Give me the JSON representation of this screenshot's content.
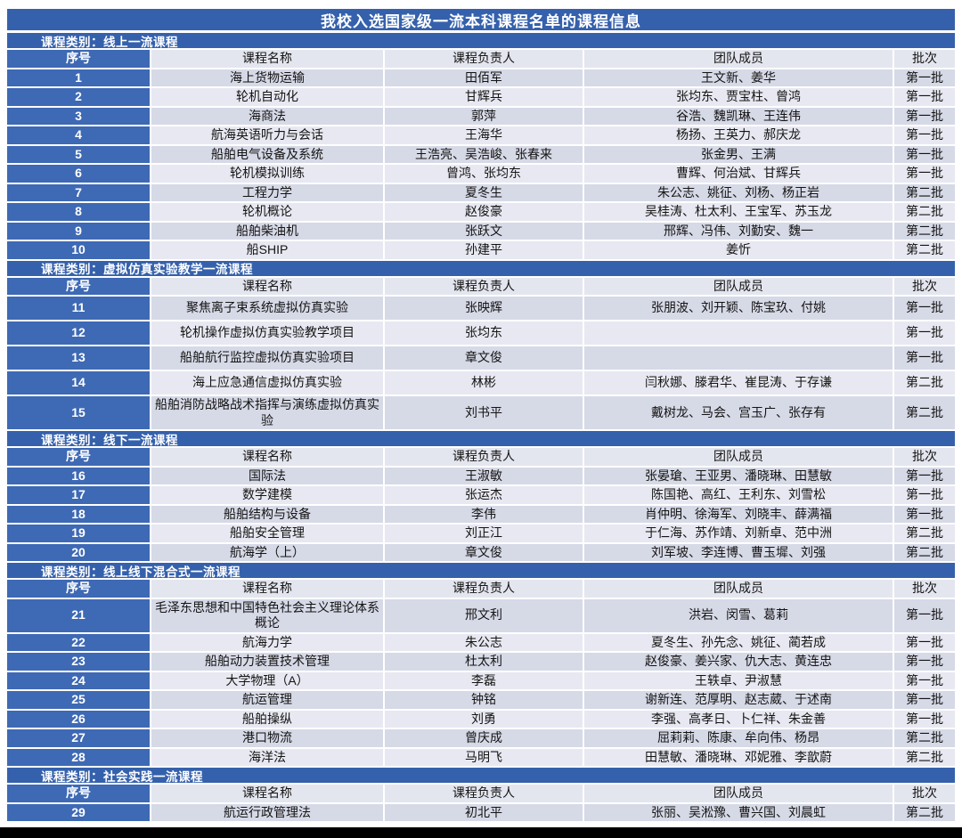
{
  "title": "我校入选国家级一流本科课程名单的课程信息",
  "columns": [
    "序号",
    "课程名称",
    "课程负责人",
    "团队成员",
    "批次"
  ],
  "colors": {
    "header_blue": "#3561AC",
    "serial_blue": "#3E69B4",
    "column_header_bg": "#E4E6EF",
    "row_dark": "#D6D9E6",
    "row_light": "#E7E8F1",
    "bottom_bar": "#000000",
    "page_bg": "#FFFFFF"
  },
  "sections": [
    {
      "category": "课程类别：线上一流课程",
      "rows": [
        {
          "no": "1",
          "name": "海上货物运输",
          "leader": "田佰军",
          "team": "王文新、姜华",
          "batch": "第一批"
        },
        {
          "no": "2",
          "name": "轮机自动化",
          "leader": "甘辉兵",
          "team": "张均东、贾宝柱、曾鸿",
          "batch": "第一批"
        },
        {
          "no": "3",
          "name": "海商法",
          "leader": "郭萍",
          "team": "谷浩、魏凯琳、王连伟",
          "batch": "第一批"
        },
        {
          "no": "4",
          "name": "航海英语听力与会话",
          "leader": "王海华",
          "team": "杨扬、王英力、郝庆龙",
          "batch": "第一批"
        },
        {
          "no": "5",
          "name": "船舶电气设备及系统",
          "leader": "王浩亮、吴浩峻、张春来",
          "team": "张金男、王满",
          "batch": "第一批"
        },
        {
          "no": "6",
          "name": "轮机模拟训练",
          "leader": "曾鸿、张均东",
          "team": "曹辉、何治斌、甘辉兵",
          "batch": "第一批"
        },
        {
          "no": "7",
          "name": "工程力学",
          "leader": "夏冬生",
          "team": "朱公志、姚征、刘杨、杨正岩",
          "batch": "第二批"
        },
        {
          "no": "8",
          "name": "轮机概论",
          "leader": "赵俊豪",
          "team": "吴桂涛、杜太利、王宝军、苏玉龙",
          "batch": "第二批"
        },
        {
          "no": "9",
          "name": "船舶柴油机",
          "leader": "张跃文",
          "team": "邢辉、冯伟、刘勤安、魏一",
          "batch": "第二批"
        },
        {
          "no": "10",
          "name": "船SHIP",
          "leader": "孙建平",
          "team": "姜忻",
          "batch": "第二批"
        }
      ]
    },
    {
      "category": "课程类别：虚拟仿真实验教学一流课程",
      "rows": [
        {
          "no": "11",
          "name": "聚焦离子束系统虚拟仿真实验",
          "leader": "张映辉",
          "team": "张朋波、刘开颖、陈宝玖、付姚",
          "batch": "第一批"
        },
        {
          "no": "12",
          "name": "轮机操作虚拟仿真实验教学项目",
          "leader": "张均东",
          "team": "",
          "batch": "第一批"
        },
        {
          "no": "13",
          "name": "船舶航行监控虚拟仿真实验项目",
          "leader": "章文俊",
          "team": "",
          "batch": "第一批"
        },
        {
          "no": "14",
          "name": "海上应急通信虚拟仿真实验",
          "leader": "林彬",
          "team": "闫秋娜、滕君华、崔昆涛、于存谦",
          "batch": "第二批"
        },
        {
          "no": "15",
          "name": "船舶消防战略战术指挥与演练虚拟仿真实验",
          "leader": "刘书平",
          "team": "戴树龙、马会、宫玉广、张存有",
          "batch": "第二批"
        }
      ]
    },
    {
      "category": "课程类别：线下一流课程",
      "rows": [
        {
          "no": "16",
          "name": "国际法",
          "leader": "王淑敏",
          "team": "张晏瑲、王亚男、潘晓琳、田慧敏",
          "batch": "第一批"
        },
        {
          "no": "17",
          "name": "数学建模",
          "leader": "张运杰",
          "team": "陈国艳、高红、王利东、刘雪松",
          "batch": "第一批"
        },
        {
          "no": "18",
          "name": "船舶结构与设备",
          "leader": "李伟",
          "team": "肖仲明、徐海军、刘晓丰、薛满福",
          "batch": "第一批"
        },
        {
          "no": "19",
          "name": "船舶安全管理",
          "leader": "刘正江",
          "team": "于仁海、苏作靖、刘新卓、范中洲",
          "batch": "第二批"
        },
        {
          "no": "20",
          "name": "航海学（上）",
          "leader": "章文俊",
          "team": "刘军坡、李连博、曹玉墀、刘强",
          "batch": "第二批"
        }
      ]
    },
    {
      "category": "课程类别：线上线下混合式一流课程",
      "rows": [
        {
          "no": "21",
          "name": "毛泽东思想和中国特色社会主义理论体系概论",
          "leader": "邢文利",
          "team": "洪岩、闵雪、葛莉",
          "batch": "第一批"
        },
        {
          "no": "22",
          "name": "航海力学",
          "leader": "朱公志",
          "team": "夏冬生、孙先念、姚征、蔺若成",
          "batch": "第一批"
        },
        {
          "no": "23",
          "name": "船舶动力装置技术管理",
          "leader": "杜太利",
          "team": "赵俊豪、姜兴家、仇大志、黄连忠",
          "batch": "第一批"
        },
        {
          "no": "24",
          "name": "大学物理（A）",
          "leader": "李磊",
          "team": "王轶卓、尹淑慧",
          "batch": "第一批"
        },
        {
          "no": "25",
          "name": "航运管理",
          "leader": "钟铭",
          "team": "谢新连、范厚明、赵志葳、于述南",
          "batch": "第一批"
        },
        {
          "no": "26",
          "name": "船舶操纵",
          "leader": "刘勇",
          "team": "李强、高孝日、卜仁祥、朱金善",
          "batch": "第一批"
        },
        {
          "no": "27",
          "name": "港口物流",
          "leader": "曾庆成",
          "team": "屈莉莉、陈康、牟向伟、杨昂",
          "batch": "第二批"
        },
        {
          "no": "28",
          "name": "海洋法",
          "leader": "马明飞",
          "team": "田慧敏、潘晓琳、邓妮雅、李歆蔚",
          "batch": "第二批"
        }
      ]
    },
    {
      "category": "课程类别：社会实践一流课程",
      "rows": [
        {
          "no": "29",
          "name": "航运行政管理法",
          "leader": "初北平",
          "team": "张丽、吴淞豫、曹兴国、刘晨虹",
          "batch": "第二批"
        }
      ]
    }
  ]
}
